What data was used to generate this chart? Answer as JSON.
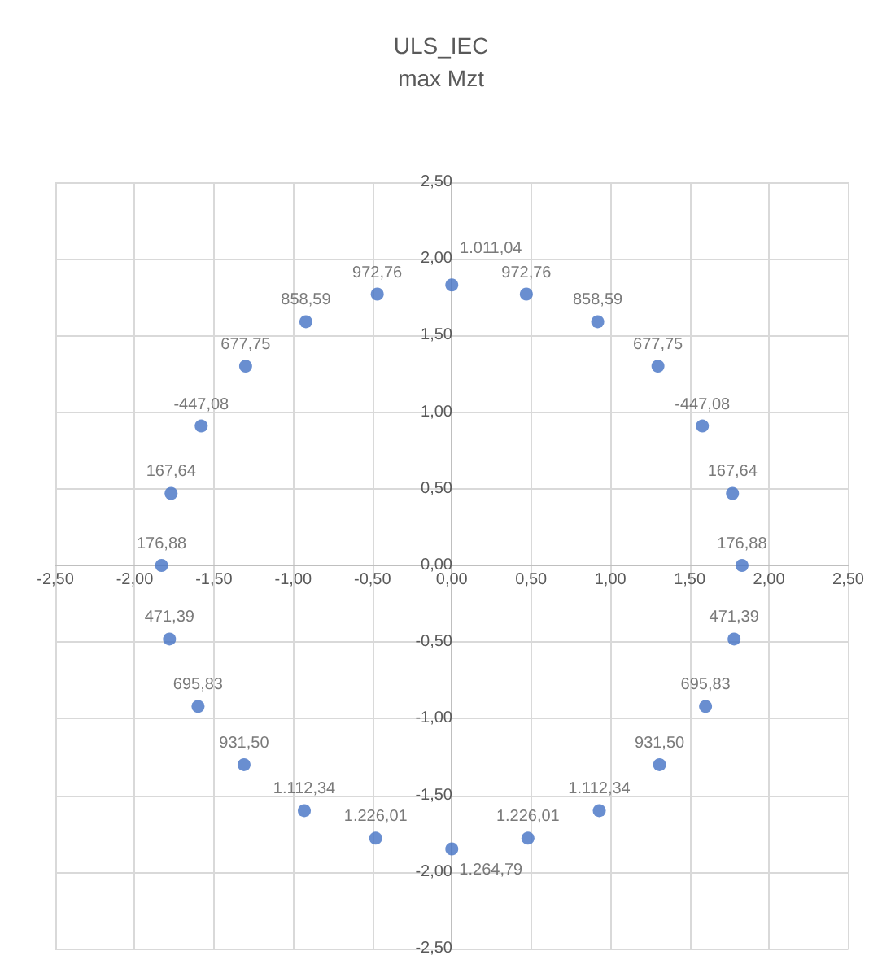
{
  "chart_data": {
    "type": "scatter",
    "title": "ULS_IEC",
    "subtitle": "max Mzt",
    "x": [
      0,
      0.47,
      0.92,
      1.3,
      1.58,
      1.77,
      1.83,
      1.78,
      1.6,
      1.31,
      0.93,
      0.48,
      0,
      -0.48,
      -0.93,
      -1.31,
      -1.6,
      -1.78,
      -1.83,
      -1.77,
      -1.58,
      -1.3,
      -0.92,
      -0.47
    ],
    "series": [
      {
        "color": "#4472c4",
        "values": [
          1.83,
          1.77,
          1.59,
          1.3,
          0.91,
          0.47,
          0,
          -0.48,
          -0.92,
          -1.3,
          -1.6,
          -1.78,
          -1.85,
          -1.78,
          -1.6,
          -1.3,
          -0.92,
          -0.48,
          0,
          0.47,
          0.91,
          1.3,
          1.59,
          1.77
        ]
      }
    ],
    "annotations": [
      {
        "text": "1.011,04",
        "x": 0,
        "y": 1.83
      },
      {
        "text": "972,76",
        "x": 0.47,
        "y": 1.77
      },
      {
        "text": "858,59",
        "x": 0.92,
        "y": 1.59
      },
      {
        "text": "677,75",
        "x": 1.3,
        "y": 1.3
      },
      {
        "text": "-447,08",
        "x": 1.58,
        "y": 0.91
      },
      {
        "text": "167,64",
        "x": 1.77,
        "y": 0.47
      },
      {
        "text": "176,88",
        "x": 1.83,
        "y": 0
      },
      {
        "text": "471,39",
        "x": 1.78,
        "y": -0.48
      },
      {
        "text": "695,83",
        "x": 1.6,
        "y": -0.92
      },
      {
        "text": "931,50",
        "x": 1.31,
        "y": -1.3
      },
      {
        "text": "1.112,34",
        "x": 0.93,
        "y": -1.6
      },
      {
        "text": "1.226,01",
        "x": 0.48,
        "y": -1.78
      },
      {
        "text": "1.264,79",
        "x": 0,
        "y": -1.85
      },
      {
        "text": "1.226,01",
        "x": -0.48,
        "y": -1.78
      },
      {
        "text": "1.112,34",
        "x": -0.93,
        "y": -1.6
      },
      {
        "text": "931,50",
        "x": -1.31,
        "y": -1.3
      },
      {
        "text": "695,83",
        "x": -1.6,
        "y": -0.92
      },
      {
        "text": "471,39",
        "x": -1.78,
        "y": -0.48
      },
      {
        "text": "176,88",
        "x": -1.83,
        "y": 0
      },
      {
        "text": "167,64",
        "x": -1.77,
        "y": 0.47
      },
      {
        "text": "-447,08",
        "x": -1.58,
        "y": 0.91
      },
      {
        "text": "677,75",
        "x": -1.3,
        "y": 1.3
      },
      {
        "text": "858,59",
        "x": -0.92,
        "y": 1.59
      },
      {
        "text": "972,76",
        "x": -0.47,
        "y": 1.77
      }
    ],
    "xlim": [
      -2.5,
      2.5
    ],
    "xticks": [
      {
        "value": -2.5,
        "label": "-2,50"
      },
      {
        "value": -2,
        "label": "-2,00"
      },
      {
        "value": -1.5,
        "label": "-1,50"
      },
      {
        "value": -1,
        "label": "-1,00"
      },
      {
        "value": -0.5,
        "label": "-0,50"
      },
      {
        "value": 0,
        "label": "0,00"
      },
      {
        "value": 0.5,
        "label": "0,50"
      },
      {
        "value": 1,
        "label": "1,00"
      },
      {
        "value": 1.5,
        "label": "1,50"
      },
      {
        "value": 2,
        "label": "2,00"
      },
      {
        "value": 2.5,
        "label": "2,50"
      }
    ],
    "ylim": [
      -2.5,
      2.5
    ],
    "yticks": [
      {
        "value": -2.5,
        "label": "-2,50"
      },
      {
        "value": -2,
        "label": "-2,00"
      },
      {
        "value": -1.5,
        "label": "-1,50"
      },
      {
        "value": -1,
        "label": "-1,00"
      },
      {
        "value": -0.5,
        "label": "-0,50"
      },
      {
        "value": 0,
        "label": "0,00"
      },
      {
        "value": 0.5,
        "label": "0,50"
      },
      {
        "value": 1,
        "label": "1,00"
      },
      {
        "value": 1.5,
        "label": "1,50"
      },
      {
        "value": 2,
        "label": "2,00"
      },
      {
        "value": 2.5,
        "label": "2,50"
      }
    ],
    "grid": true,
    "marker": "circle"
  }
}
